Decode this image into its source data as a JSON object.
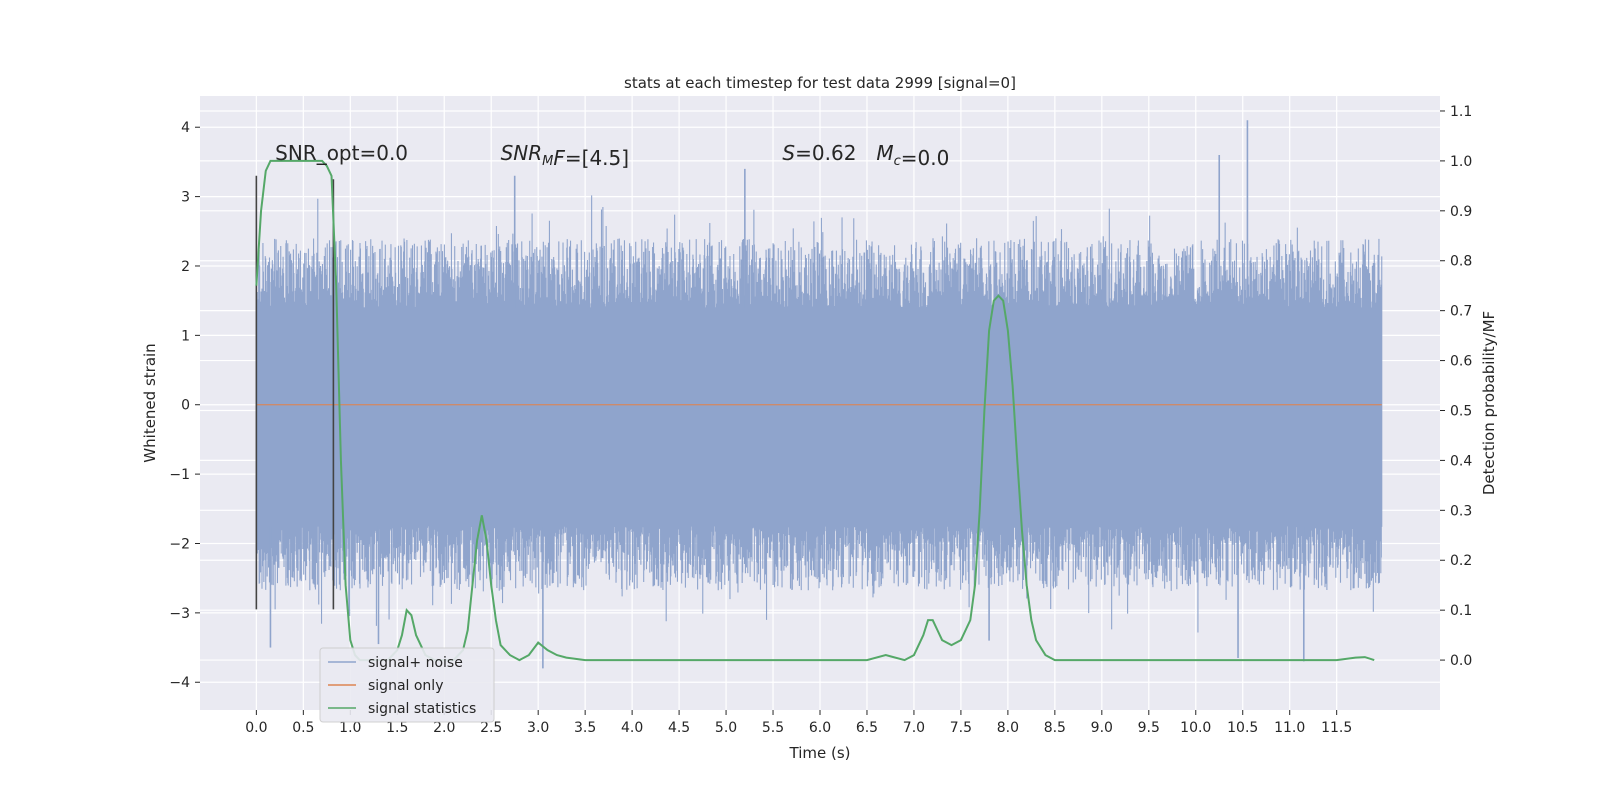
{
  "chart_data": {
    "type": "line",
    "title": "stats at each timestep for test data 2999 [signal=0]",
    "xlabel": "Time (s)",
    "ylabel_left": "Whitened strain",
    "ylabel_right": "Detection probability/MF",
    "xlim": [
      -0.6,
      12.6
    ],
    "ylim_left": [
      -4.4,
      4.45
    ],
    "ylim_right": [
      -0.1,
      1.13
    ],
    "grid": true,
    "x_ticks": [
      0.0,
      0.5,
      1.0,
      1.5,
      2.0,
      2.5,
      3.0,
      3.5,
      4.0,
      4.5,
      5.0,
      5.5,
      6.0,
      6.5,
      7.0,
      7.5,
      8.0,
      8.5,
      9.0,
      9.5,
      10.0,
      10.5,
      11.0,
      11.5
    ],
    "x_tick_labels": [
      "0.0",
      "0.5",
      "1.0",
      "1.5",
      "2.0",
      "2.5",
      "3.0",
      "3.5",
      "4.0",
      "4.5",
      "5.0",
      "5.5",
      "6.0",
      "6.5",
      "7.0",
      "7.5",
      "8.0",
      "8.5",
      "9.0",
      "9.5",
      "10.0",
      "10.5",
      "11.0",
      "11.5"
    ],
    "y_left_ticks": [
      4,
      3,
      2,
      1,
      0,
      -1,
      -2,
      -3,
      -4
    ],
    "y_left_tick_labels": [
      "4",
      "3",
      "2",
      "1",
      "0",
      "−1",
      "−2",
      "−3",
      "−4"
    ],
    "y_right_ticks": [
      1.1,
      1.0,
      0.9,
      0.8,
      0.7,
      0.6,
      0.5,
      0.4,
      0.3,
      0.2,
      0.1,
      0.0
    ],
    "y_right_tick_labels": [
      "1.1",
      "1.0",
      "0.9",
      "0.8",
      "0.7",
      "0.6",
      "0.5",
      "0.4",
      "0.3",
      "0.2",
      "0.1",
      "0.0"
    ],
    "annotations": [
      {
        "text": "SNR_opt=0.0",
        "x": 0.2,
        "y_right": 1.0
      },
      {
        "text_parts": [
          {
            "t": "SNR",
            "italic": true
          },
          {
            "t": "M",
            "italic": true,
            "sub": true
          },
          {
            "t": "F",
            "italic": true
          },
          {
            "t": "=[4.5]",
            "italic": false
          }
        ],
        "x": 2.6,
        "y_right": 1.0
      },
      {
        "text_parts": [
          {
            "t": "S",
            "italic": true
          },
          {
            "t": "=0.62",
            "italic": false
          }
        ],
        "x": 5.6,
        "y_right": 1.0
      },
      {
        "text_parts": [
          {
            "t": "M",
            "italic": true
          },
          {
            "t": "c",
            "italic": true,
            "sub": true
          },
          {
            "t": "=0.0",
            "italic": false
          }
        ],
        "x": 6.6,
        "y_right": 1.0
      }
    ],
    "vertical_markers": [
      {
        "x": 0.0,
        "y_from": -2.95,
        "y_to": 3.3
      },
      {
        "x": 0.82,
        "y_from": -2.95,
        "y_to": 3.25
      }
    ],
    "series": [
      {
        "name": "signal+ noise",
        "color": "#8fa4cc",
        "axis": "left",
        "x_range": [
          0.0,
          11.98
        ],
        "envelope": {
          "core_upper": 1.4,
          "core_lower": -1.75,
          "typical_peak": 2.4,
          "max": 4.1,
          "min": -3.8
        },
        "notable_peaks": [
          {
            "x": 10.55,
            "y": 4.1
          },
          {
            "x": 5.2,
            "y": 3.4
          },
          {
            "x": 10.25,
            "y": 3.6
          },
          {
            "x": 2.75,
            "y": 3.3
          },
          {
            "x": 3.05,
            "y": -3.8
          },
          {
            "x": 11.15,
            "y": -3.7
          },
          {
            "x": 10.45,
            "y": -3.65
          },
          {
            "x": 0.15,
            "y": -3.5
          },
          {
            "x": 7.8,
            "y": -3.4
          },
          {
            "x": 1.3,
            "y": -3.45
          }
        ]
      },
      {
        "name": "signal only",
        "color": "#dd8452",
        "axis": "left",
        "x": [
          0.0,
          11.98
        ],
        "values": [
          0.0,
          0.0
        ]
      },
      {
        "name": "signal statistics",
        "color": "#55a868",
        "axis": "right",
        "x": [
          0.0,
          0.05,
          0.1,
          0.15,
          0.2,
          0.3,
          0.4,
          0.5,
          0.6,
          0.7,
          0.75,
          0.8,
          0.85,
          0.9,
          0.95,
          1.0,
          1.05,
          1.1,
          1.2,
          1.3,
          1.4,
          1.5,
          1.55,
          1.6,
          1.65,
          1.7,
          1.8,
          1.9,
          2.0,
          2.1,
          2.2,
          2.25,
          2.3,
          2.35,
          2.4,
          2.45,
          2.5,
          2.55,
          2.6,
          2.7,
          2.8,
          2.9,
          3.0,
          3.1,
          3.2,
          3.3,
          3.5,
          4.0,
          4.5,
          5.0,
          5.5,
          6.0,
          6.5,
          6.7,
          6.9,
          7.0,
          7.1,
          7.15,
          7.2,
          7.25,
          7.3,
          7.4,
          7.5,
          7.6,
          7.65,
          7.7,
          7.75,
          7.8,
          7.85,
          7.9,
          7.95,
          8.0,
          8.05,
          8.1,
          8.15,
          8.2,
          8.25,
          8.3,
          8.4,
          8.5,
          8.6,
          8.7,
          9.0,
          9.5,
          10.0,
          10.5,
          11.0,
          11.5,
          11.7,
          11.8,
          11.9
        ],
        "values": [
          0.75,
          0.9,
          0.98,
          1.0,
          1.0,
          1.0,
          1.0,
          1.0,
          1.0,
          1.0,
          0.99,
          0.97,
          0.75,
          0.4,
          0.15,
          0.04,
          0.01,
          0.0,
          0.0,
          0.0,
          0.0,
          0.02,
          0.05,
          0.1,
          0.09,
          0.05,
          0.01,
          0.0,
          0.0,
          0.0,
          0.02,
          0.06,
          0.15,
          0.24,
          0.29,
          0.24,
          0.15,
          0.08,
          0.03,
          0.01,
          0.0,
          0.01,
          0.035,
          0.02,
          0.01,
          0.005,
          0.0,
          0.0,
          0.0,
          0.0,
          0.0,
          0.0,
          0.0,
          0.01,
          0.0,
          0.01,
          0.05,
          0.08,
          0.08,
          0.06,
          0.04,
          0.03,
          0.04,
          0.08,
          0.15,
          0.3,
          0.5,
          0.66,
          0.72,
          0.73,
          0.72,
          0.66,
          0.55,
          0.4,
          0.26,
          0.15,
          0.08,
          0.04,
          0.01,
          0.0,
          0.0,
          0.0,
          0.0,
          0.0,
          0.0,
          0.0,
          0.0,
          0.0,
          0.005,
          0.006,
          0.0
        ]
      }
    ],
    "legend": {
      "placement": "lower-left",
      "entries": [
        "signal+ noise",
        "signal only",
        "signal statistics"
      ]
    }
  },
  "style": {
    "background": "#ffffff",
    "plot_background": "#eaeaf2",
    "grid_color": "#ffffff",
    "marker_color": "#444444"
  }
}
